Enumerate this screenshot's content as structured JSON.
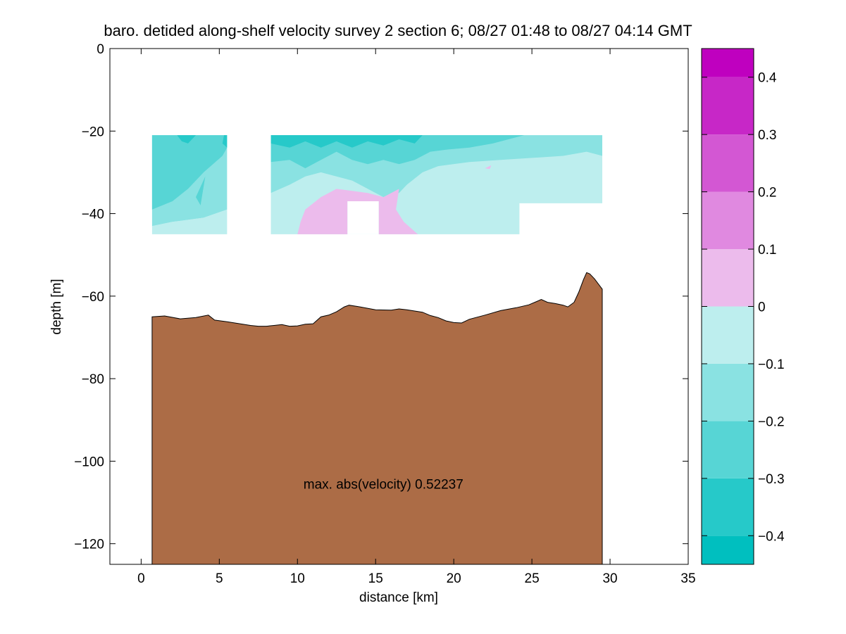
{
  "chart_data": {
    "type": "heatmap",
    "title": "baro. detided along-shelf velocity survey 2 section 6; 08/27 01:48 to 08/27 04:14 GMT",
    "xlabel": "distance [km]",
    "ylabel": "depth [m]",
    "xlim": [
      -2,
      35
    ],
    "ylim": [
      -125,
      0
    ],
    "xticks": [
      0,
      5,
      10,
      15,
      20,
      25,
      30,
      35
    ],
    "xtick_labels": [
      "0",
      "5",
      "10",
      "15",
      "20",
      "25",
      "30",
      "35"
    ],
    "yticks": [
      0,
      -20,
      -40,
      -60,
      -80,
      -100,
      -120
    ],
    "ytick_labels": [
      "0",
      "−20",
      "−40",
      "−60",
      "−80",
      "−100",
      "−120"
    ],
    "annotation": {
      "text": "max. abs(velocity) 0.52237",
      "x": 15.5,
      "y": -105.5
    },
    "colorbar": {
      "range": [
        -0.45,
        0.45
      ],
      "levels": [
        {
          "from": -0.45,
          "to": -0.4,
          "color": "#00bfbf"
        },
        {
          "from": -0.4,
          "to": -0.3,
          "color": "#26c9c9"
        },
        {
          "from": -0.3,
          "to": -0.2,
          "color": "#57d5d5"
        },
        {
          "from": -0.2,
          "to": -0.1,
          "color": "#8ae2e2"
        },
        {
          "from": -0.1,
          "to": 0.0,
          "color": "#bdeeee"
        },
        {
          "from": 0.0,
          "to": 0.1,
          "color": "#ecbbec"
        },
        {
          "from": 0.1,
          "to": 0.2,
          "color": "#e089e0"
        },
        {
          "from": 0.2,
          "to": 0.3,
          "color": "#d357d3"
        },
        {
          "from": 0.3,
          "to": 0.4,
          "color": "#c727c7"
        },
        {
          "from": 0.4,
          "to": 0.45,
          "color": "#bf00bf"
        }
      ],
      "ticks": [
        0.4,
        0.3,
        0.2,
        0.1,
        0,
        -0.1,
        -0.2,
        -0.3,
        -0.4
      ],
      "tick_labels": [
        "0.4",
        "0.3",
        "0.2",
        "0.1",
        "0",
        "−0.1",
        "−0.2",
        "−0.3",
        "−0.4"
      ]
    },
    "velocity_patches": [
      {
        "level": "-0.1 to 0",
        "polygon": [
          [
            0.7,
            -45
          ],
          [
            5.5,
            -45
          ],
          [
            5.5,
            -39
          ],
          [
            4,
            -41
          ],
          [
            2,
            -42
          ],
          [
            0.7,
            -43
          ]
        ]
      },
      {
        "level": "-0.2 to -0.1",
        "polygon": [
          [
            0.7,
            -43
          ],
          [
            2,
            -42
          ],
          [
            4,
            -41
          ],
          [
            5.5,
            -39
          ],
          [
            5.5,
            -21
          ],
          [
            0.7,
            -21
          ]
        ]
      },
      {
        "level": "-0.3 to -0.2",
        "polygon": [
          [
            0.7,
            -39
          ],
          [
            2,
            -37
          ],
          [
            3,
            -34
          ],
          [
            4,
            -30
          ],
          [
            5.2,
            -26
          ],
          [
            5.5,
            -24
          ],
          [
            5.5,
            -21
          ],
          [
            0.7,
            -21
          ]
        ]
      },
      {
        "level": "-0.4 to -0.3",
        "polygon": [
          [
            2.3,
            -21
          ],
          [
            3.5,
            -21
          ],
          [
            3,
            -23
          ],
          [
            2.6,
            -22.5
          ]
        ]
      },
      {
        "level": "-0.4 to -0.3",
        "polygon": [
          [
            5.3,
            -21
          ],
          [
            5.5,
            -21
          ],
          [
            5.5,
            -24
          ],
          [
            5.2,
            -23
          ]
        ]
      },
      {
        "level": "-0.3 to -0.2",
        "polygon": [
          [
            3.5,
            -36
          ],
          [
            4.1,
            -31
          ],
          [
            3.8,
            -38
          ]
        ]
      },
      {
        "level": "-0.1 to 0",
        "polygon": [
          [
            8.3,
            -45
          ],
          [
            24.2,
            -45
          ],
          [
            24.2,
            -37.5
          ],
          [
            29.5,
            -37.5
          ],
          [
            29.5,
            -21
          ],
          [
            8.3,
            -21
          ]
        ]
      },
      {
        "level": "-0.2 to -0.1",
        "polygon": [
          [
            8.3,
            -35
          ],
          [
            9.5,
            -33
          ],
          [
            10.5,
            -31
          ],
          [
            11.5,
            -30
          ],
          [
            12.5,
            -31
          ],
          [
            13.5,
            -32
          ],
          [
            14.5,
            -34
          ],
          [
            15.5,
            -36
          ],
          [
            16.5,
            -35
          ],
          [
            17,
            -33
          ],
          [
            18,
            -30
          ],
          [
            19,
            -28.5
          ],
          [
            21,
            -27.5
          ],
          [
            23,
            -27
          ],
          [
            25,
            -26.5
          ],
          [
            27,
            -26
          ],
          [
            28.5,
            -25
          ],
          [
            29.5,
            -26
          ],
          [
            29.5,
            -21
          ],
          [
            8.3,
            -21
          ]
        ]
      },
      {
        "level": "-0.3 to -0.2",
        "polygon": [
          [
            8.3,
            -27.5
          ],
          [
            9.5,
            -27
          ],
          [
            10.5,
            -29
          ],
          [
            11.5,
            -27
          ],
          [
            12.5,
            -25
          ],
          [
            13.5,
            -27
          ],
          [
            14.5,
            -28
          ],
          [
            15.5,
            -27
          ],
          [
            16.5,
            -28
          ],
          [
            17.5,
            -27
          ],
          [
            18.5,
            -25
          ],
          [
            19.5,
            -24.5
          ],
          [
            21,
            -24
          ],
          [
            22.5,
            -23
          ],
          [
            24.5,
            -21
          ],
          [
            8.3,
            -21
          ]
        ]
      },
      {
        "level": "-0.4 to -0.3",
        "polygon": [
          [
            8.3,
            -23
          ],
          [
            9.5,
            -24
          ],
          [
            10.5,
            -22.5
          ],
          [
            11.5,
            -24
          ],
          [
            12.5,
            -22.5
          ],
          [
            13.5,
            -24
          ],
          [
            14.5,
            -22.5
          ],
          [
            15.5,
            -23.5
          ],
          [
            16.5,
            -22
          ],
          [
            17.5,
            -23
          ],
          [
            18,
            -21
          ],
          [
            8.3,
            -21
          ]
        ]
      },
      {
        "level": "0 to 0.1",
        "polygon": [
          [
            10,
            -45
          ],
          [
            13.2,
            -45
          ],
          [
            13.2,
            -37
          ],
          [
            15.2,
            -37
          ],
          [
            15.2,
            -45
          ],
          [
            17.7,
            -45
          ],
          [
            16.8,
            -42
          ],
          [
            16.3,
            -39
          ],
          [
            16.5,
            -34
          ],
          [
            15.5,
            -36
          ],
          [
            14.5,
            -35
          ],
          [
            13.5,
            -34.5
          ],
          [
            12.5,
            -34
          ],
          [
            11.5,
            -36
          ],
          [
            10.5,
            -39
          ],
          [
            10.2,
            -42
          ]
        ]
      },
      {
        "level": "0 to 0.1",
        "polygon": [
          [
            22,
            -29
          ],
          [
            22.4,
            -28.3
          ],
          [
            22.3,
            -29.2
          ]
        ]
      }
    ],
    "gaps": [
      {
        "from_km": 5.5,
        "to_km": 8.3
      },
      {
        "from_km": 13.2,
        "to_km": 15.2,
        "depth_from": -37,
        "depth_to": -45
      }
    ],
    "bathymetry": {
      "label": "bottom",
      "color": "#ac6c46",
      "x": [
        0.7,
        1.5,
        2.5,
        3.5,
        4.3,
        4.7,
        5.5,
        6.0,
        6.5,
        7.0,
        7.5,
        8.0,
        8.5,
        9.0,
        9.5,
        10.0,
        10.5,
        11.0,
        11.5,
        12.0,
        12.5,
        13.0,
        13.3,
        14.0,
        15.0,
        16.0,
        16.5,
        17.0,
        17.5,
        18.0,
        18.5,
        19.0,
        19.5,
        20.0,
        20.5,
        21.0,
        22.0,
        23.0,
        24.0,
        24.8,
        25.3,
        25.6,
        26.0,
        26.5,
        27.0,
        27.3,
        27.7,
        28.0,
        28.3,
        28.5,
        28.7,
        29.0,
        29.5
      ],
      "y": [
        -65,
        -64.8,
        -65.5,
        -65.2,
        -64.6,
        -65.8,
        -66.2,
        -66.5,
        -66.8,
        -67.1,
        -67.3,
        -67.3,
        -67.1,
        -66.9,
        -67.3,
        -67.2,
        -66.8,
        -66.7,
        -65,
        -64.6,
        -63.8,
        -62.6,
        -62.2,
        -62.6,
        -63.3,
        -63.4,
        -63.1,
        -63.3,
        -63.6,
        -63.9,
        -64.7,
        -65.2,
        -66,
        -66.4,
        -66.5,
        -65.6,
        -64.6,
        -63.5,
        -62.8,
        -62.1,
        -61.3,
        -60.8,
        -61.5,
        -61.8,
        -62.2,
        -62.6,
        -61.5,
        -59,
        -56,
        -54.3,
        -54.6,
        -55.8,
        -58.3
      ]
    }
  }
}
